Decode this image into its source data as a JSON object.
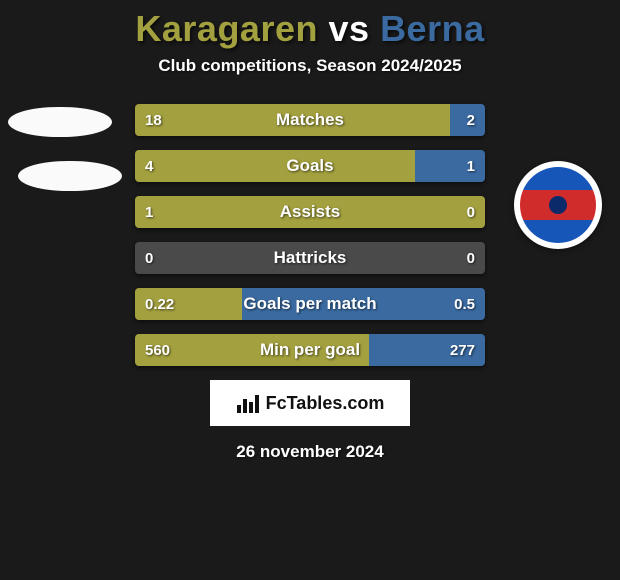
{
  "title": {
    "left": "Karagaren",
    "vs": "vs",
    "right": "Berna",
    "left_color": "#a3a03f",
    "vs_color": "#ffffff",
    "right_color": "#3a6aa0"
  },
  "subtitle": "Club competitions, Season 2024/2025",
  "team_colors": {
    "left": "#a3a03f",
    "right": "#3a6aa0"
  },
  "background_color": "#1a1a1a",
  "bars": [
    {
      "label": "Matches",
      "left": "18",
      "right": "2",
      "left_pct": 90,
      "right_pct": 10
    },
    {
      "label": "Goals",
      "left": "4",
      "right": "1",
      "left_pct": 80,
      "right_pct": 20
    },
    {
      "label": "Assists",
      "left": "1",
      "right": "0",
      "left_pct": 100,
      "right_pct": 0
    },
    {
      "label": "Hattricks",
      "left": "0",
      "right": "0",
      "left_pct": 50,
      "right_pct": 50,
      "empty": true
    },
    {
      "label": "Goals per match",
      "left": "0.22",
      "right": "0.5",
      "left_pct": 30.6,
      "right_pct": 69.4
    },
    {
      "label": "Min per goal",
      "left": "560",
      "right": "277",
      "left_pct": 66.9,
      "right_pct": 33.1
    }
  ],
  "bar_empty_fill": "#4a4a4a",
  "footer": {
    "brand": "FcTables.com"
  },
  "date": "26 november 2024"
}
